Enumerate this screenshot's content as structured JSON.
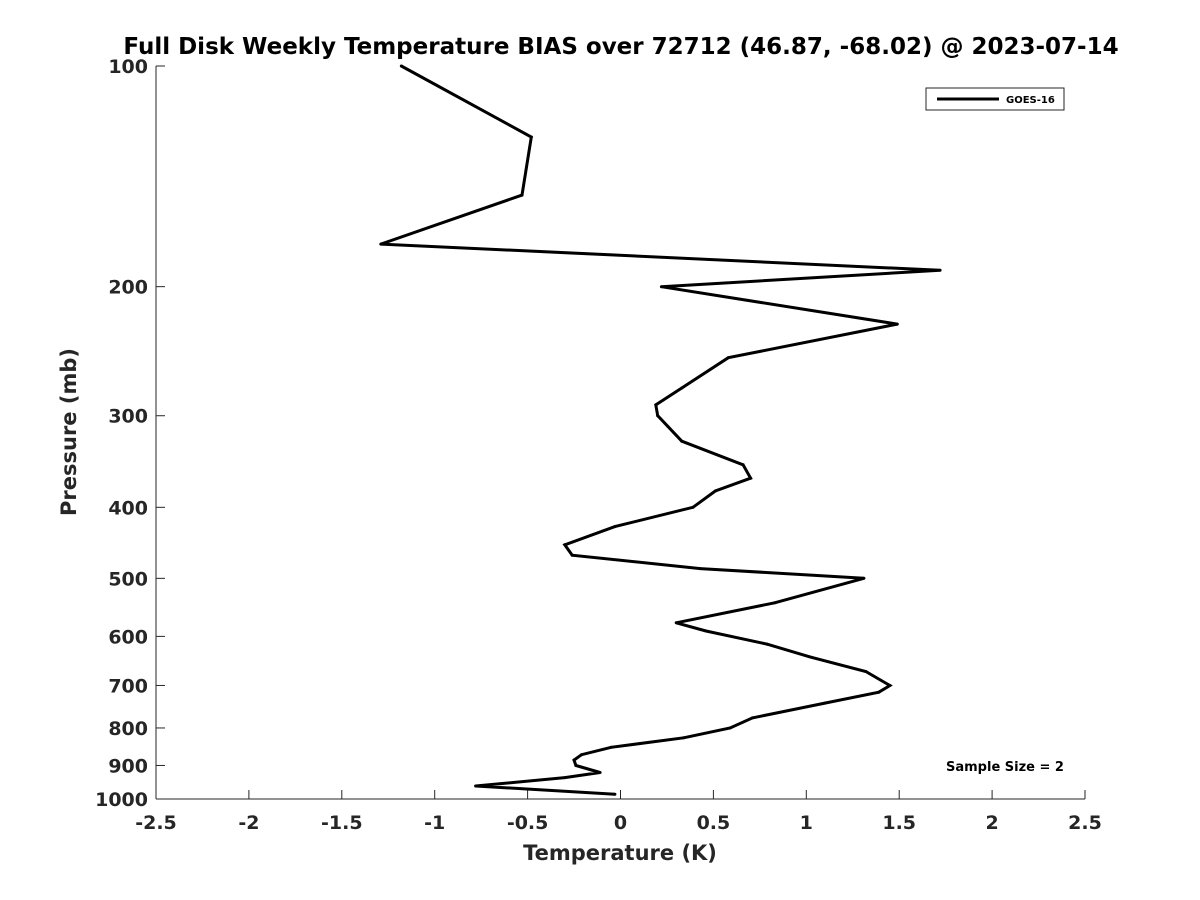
{
  "chart_data": {
    "type": "line",
    "title": "Full Disk Weekly Temperature BIAS over 72712 (46.87, -68.02) @ 2023-07-14",
    "xlabel": "Temperature (K)",
    "ylabel": "Pressure (mb)",
    "xlim": [
      -2.5,
      2.5
    ],
    "ylim": [
      100,
      1000
    ],
    "yscale": "log",
    "y_reversed": true,
    "x_ticks": [
      -2.5,
      -2,
      -1.5,
      -1,
      -0.5,
      0,
      0.5,
      1,
      1.5,
      2,
      2.5
    ],
    "x_tick_labels": [
      "-2.5",
      "-2",
      "-1.5",
      "-1",
      "-0.5",
      "0",
      "0.5",
      "1",
      "1.5",
      "2",
      "2.5"
    ],
    "y_ticks": [
      100,
      200,
      300,
      400,
      500,
      600,
      700,
      800,
      900,
      1000
    ],
    "y_tick_labels": [
      "100",
      "200",
      "300",
      "400",
      "500",
      "600",
      "700",
      "800",
      "900",
      "1000"
    ],
    "grid": false,
    "legend": {
      "position": "top-right",
      "entries": [
        "GOES-16"
      ]
    },
    "annotation": "Sample Size = 2",
    "series": [
      {
        "name": "GOES-16",
        "color": "#000000",
        "points": [
          {
            "x": -1.18,
            "y": 100
          },
          {
            "x": -0.48,
            "y": 125
          },
          {
            "x": -0.53,
            "y": 150
          },
          {
            "x": -1.29,
            "y": 175
          },
          {
            "x": 1.72,
            "y": 190
          },
          {
            "x": 0.22,
            "y": 200
          },
          {
            "x": 1.49,
            "y": 225
          },
          {
            "x": 0.58,
            "y": 250
          },
          {
            "x": 0.33,
            "y": 275
          },
          {
            "x": 0.19,
            "y": 290
          },
          {
            "x": 0.2,
            "y": 300
          },
          {
            "x": 0.33,
            "y": 325
          },
          {
            "x": 0.66,
            "y": 350
          },
          {
            "x": 0.7,
            "y": 365
          },
          {
            "x": 0.51,
            "y": 380
          },
          {
            "x": 0.39,
            "y": 400
          },
          {
            "x": -0.03,
            "y": 425
          },
          {
            "x": -0.3,
            "y": 450
          },
          {
            "x": -0.26,
            "y": 465
          },
          {
            "x": 0.43,
            "y": 485
          },
          {
            "x": 1.31,
            "y": 500
          },
          {
            "x": 0.83,
            "y": 540
          },
          {
            "x": 0.3,
            "y": 575
          },
          {
            "x": 0.46,
            "y": 590
          },
          {
            "x": 0.79,
            "y": 615
          },
          {
            "x": 1.02,
            "y": 640
          },
          {
            "x": 1.32,
            "y": 670
          },
          {
            "x": 1.45,
            "y": 700
          },
          {
            "x": 1.39,
            "y": 715
          },
          {
            "x": 1.1,
            "y": 740
          },
          {
            "x": 0.71,
            "y": 775
          },
          {
            "x": 0.59,
            "y": 800
          },
          {
            "x": 0.34,
            "y": 825
          },
          {
            "x": -0.05,
            "y": 850
          },
          {
            "x": -0.21,
            "y": 870
          },
          {
            "x": -0.25,
            "y": 885
          },
          {
            "x": -0.24,
            "y": 900
          },
          {
            "x": -0.11,
            "y": 920
          },
          {
            "x": -0.3,
            "y": 935
          },
          {
            "x": -0.78,
            "y": 960
          },
          {
            "x": -0.03,
            "y": 985
          }
        ]
      }
    ]
  }
}
